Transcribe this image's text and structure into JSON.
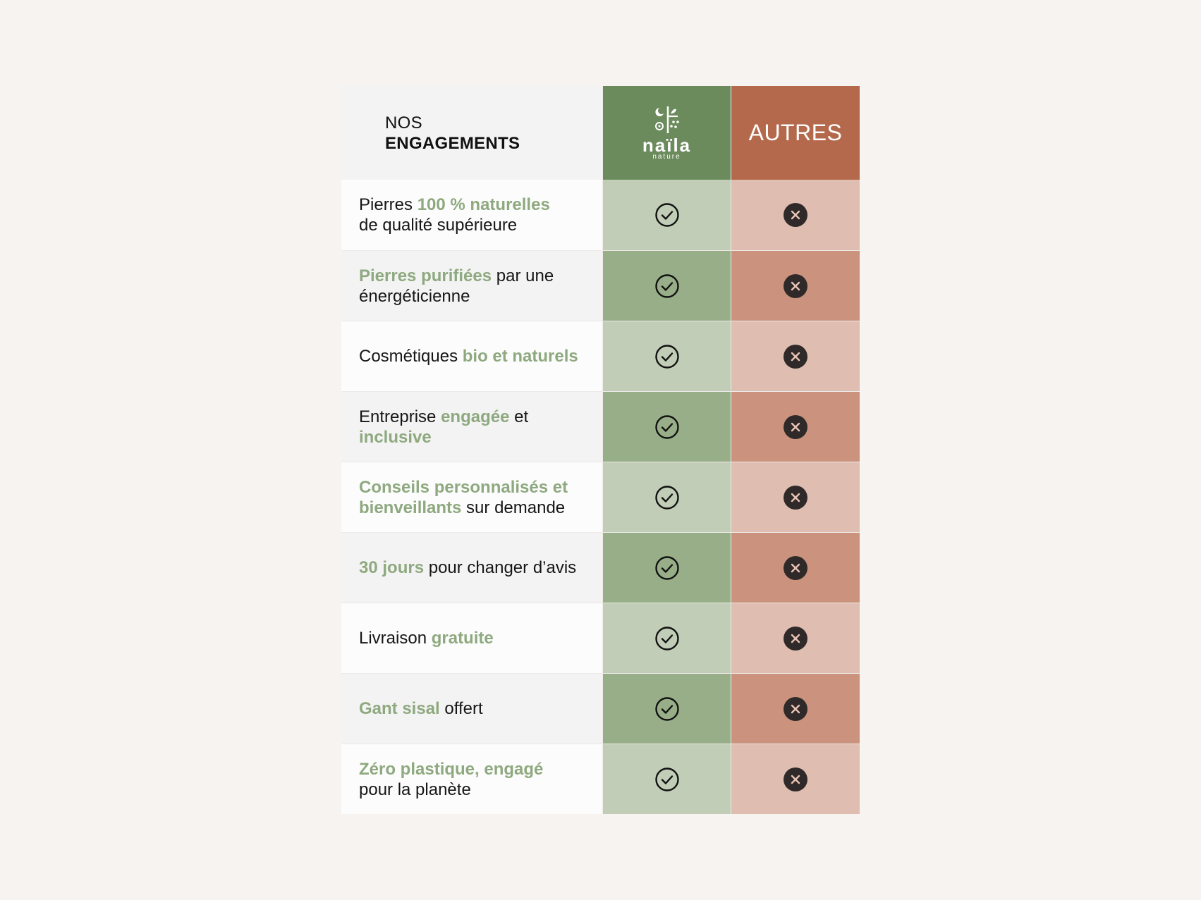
{
  "header": {
    "title_line1": "NOS",
    "title_line2": "ENGAGEMENTS",
    "brand_name": "naïla",
    "brand_sub": "nature",
    "others_label": "AUTRES"
  },
  "rows": [
    {
      "parts": [
        {
          "t": "Pierres ",
          "hl": false
        },
        {
          "t": "100 % naturelles",
          "hl": true
        },
        {
          "t": "\nde qualité supérieure",
          "hl": false
        }
      ],
      "naila": "check-icon",
      "autres": "cross-icon"
    },
    {
      "parts": [
        {
          "t": "Pierres purifiées",
          "hl": true
        },
        {
          "t": " par une\nénergéticienne",
          "hl": false
        }
      ],
      "naila": "check-icon",
      "autres": "cross-icon"
    },
    {
      "parts": [
        {
          "t": "Cosmétiques ",
          "hl": false
        },
        {
          "t": "bio et naturels",
          "hl": true
        }
      ],
      "naila": "check-icon",
      "autres": "cross-icon"
    },
    {
      "parts": [
        {
          "t": "Entreprise ",
          "hl": false
        },
        {
          "t": "engagée",
          "hl": true
        },
        {
          "t": " et\n",
          "hl": false
        },
        {
          "t": "inclusive",
          "hl": true
        }
      ],
      "naila": "check-icon",
      "autres": "cross-icon"
    },
    {
      "parts": [
        {
          "t": "Conseils personnalisés et\nbienveillants",
          "hl": true
        },
        {
          "t": " sur demande",
          "hl": false
        }
      ],
      "naila": "check-icon",
      "autres": "cross-icon"
    },
    {
      "parts": [
        {
          "t": "30 jours",
          "hl": true
        },
        {
          "t": " pour changer d’avis",
          "hl": false
        }
      ],
      "naila": "check-icon",
      "autres": "cross-icon"
    },
    {
      "parts": [
        {
          "t": "Livraison ",
          "hl": false
        },
        {
          "t": "gratuite",
          "hl": true
        }
      ],
      "naila": "check-icon",
      "autres": "cross-icon"
    },
    {
      "parts": [
        {
          "t": "Gant sisal",
          "hl": true
        },
        {
          "t": " offert",
          "hl": false
        }
      ],
      "naila": "check-icon",
      "autres": "cross-icon"
    },
    {
      "parts": [
        {
          "t": "Zéro plastique, engagé",
          "hl": true
        },
        {
          "t": "\npour la planète",
          "hl": false
        }
      ],
      "naila": "check-icon",
      "autres": "cross-icon"
    }
  ],
  "colors": {
    "naila_header": "#6c8b5d",
    "autres_header": "#b5694c",
    "highlight_text": "#8ea97f"
  }
}
